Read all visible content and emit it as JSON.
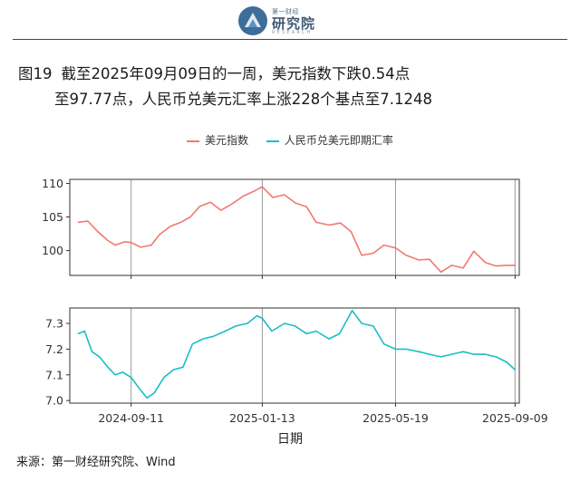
{
  "logo": {
    "top": "第一财经",
    "main": "研究院",
    "sub": "RESEARCH"
  },
  "title": {
    "number": "图19",
    "line1": "截至2025年09月09日的一周，美元指数下跌0.54点",
    "line2": "至97.77点，人民币兑美元汇率上涨228个基点至7.1248"
  },
  "legend": [
    {
      "label": "美元指数",
      "color": "#F07A70"
    },
    {
      "label": "人民币兑美元即期汇率",
      "color": "#18BFC4"
    }
  ],
  "x_axis_title": "日期",
  "source": "来源：第一财经研究院、Wind",
  "chart_data": [
    {
      "type": "line",
      "panel": "top",
      "series_name": "美元指数",
      "color": "#F07A70",
      "ylim": [
        96.3,
        110.6
      ],
      "yticks": [
        100,
        105,
        110
      ],
      "xlim": [
        "2024-07-15",
        "2025-09-13"
      ],
      "vlines": [
        "2024-09-11",
        "2025-01-13",
        "2025-05-19",
        "2025-09-09"
      ],
      "x": [
        "2024-07-23",
        "2024-08-01",
        "2024-08-10",
        "2024-08-20",
        "2024-08-27",
        "2024-09-05",
        "2024-09-11",
        "2024-09-20",
        "2024-09-30",
        "2024-10-08",
        "2024-10-18",
        "2024-10-28",
        "2024-11-06",
        "2024-11-15",
        "2024-11-25",
        "2024-12-05",
        "2024-12-16",
        "2024-12-26",
        "2025-01-06",
        "2025-01-13",
        "2025-01-23",
        "2025-02-03",
        "2025-02-13",
        "2025-02-24",
        "2025-03-05",
        "2025-03-17",
        "2025-03-28",
        "2025-04-07",
        "2025-04-17",
        "2025-04-28",
        "2025-05-08",
        "2025-05-19",
        "2025-05-29",
        "2025-06-10",
        "2025-06-20",
        "2025-07-01",
        "2025-07-11",
        "2025-07-22",
        "2025-08-01",
        "2025-08-12",
        "2025-08-22",
        "2025-09-01",
        "2025-09-09"
      ],
      "values": [
        104.2,
        104.4,
        102.9,
        101.5,
        100.8,
        101.3,
        101.2,
        100.5,
        100.8,
        102.4,
        103.6,
        104.2,
        105.0,
        106.6,
        107.2,
        106.0,
        107.0,
        108.1,
        108.9,
        109.5,
        107.9,
        108.3,
        107.1,
        106.5,
        104.2,
        103.8,
        104.1,
        102.8,
        99.3,
        99.6,
        100.8,
        100.4,
        99.3,
        98.6,
        98.7,
        96.8,
        97.8,
        97.4,
        99.9,
        98.2,
        97.7,
        97.8,
        97.8
      ]
    },
    {
      "type": "line",
      "panel": "bottom",
      "series_name": "人民币兑美元即期汇率",
      "color": "#18BFC4",
      "ylim": [
        6.99,
        7.36
      ],
      "yticks": [
        7.0,
        7.1,
        7.2,
        7.3
      ],
      "xlim": [
        "2024-07-15",
        "2025-09-13"
      ],
      "vlines": [
        "2024-09-11",
        "2025-01-13",
        "2025-05-19",
        "2025-09-09"
      ],
      "x": [
        "2024-07-23",
        "2024-07-29",
        "2024-08-05",
        "2024-08-12",
        "2024-08-20",
        "2024-08-27",
        "2024-09-03",
        "2024-09-11",
        "2024-09-20",
        "2024-09-26",
        "2024-10-03",
        "2024-10-12",
        "2024-10-21",
        "2024-10-30",
        "2024-11-08",
        "2024-11-18",
        "2024-11-28",
        "2024-12-09",
        "2024-12-19",
        "2024-12-30",
        "2025-01-08",
        "2025-01-13",
        "2025-01-22",
        "2025-02-03",
        "2025-02-13",
        "2025-02-24",
        "2025-03-05",
        "2025-03-17",
        "2025-03-27",
        "2025-04-08",
        "2025-04-17",
        "2025-04-28",
        "2025-05-08",
        "2025-05-19",
        "2025-05-29",
        "2025-06-10",
        "2025-06-20",
        "2025-07-01",
        "2025-07-11",
        "2025-07-22",
        "2025-08-01",
        "2025-08-12",
        "2025-08-22",
        "2025-09-01",
        "2025-09-09"
      ],
      "values": [
        7.26,
        7.27,
        7.19,
        7.17,
        7.13,
        7.1,
        7.11,
        7.09,
        7.04,
        7.01,
        7.03,
        7.09,
        7.12,
        7.13,
        7.22,
        7.24,
        7.25,
        7.27,
        7.29,
        7.3,
        7.33,
        7.32,
        7.27,
        7.3,
        7.29,
        7.26,
        7.27,
        7.24,
        7.26,
        7.35,
        7.3,
        7.29,
        7.22,
        7.2,
        7.2,
        7.19,
        7.18,
        7.17,
        7.18,
        7.19,
        7.18,
        7.18,
        7.17,
        7.15,
        7.12
      ]
    }
  ],
  "x_tick_labels": [
    "2024-09-11",
    "2025-01-13",
    "2025-05-19",
    "2025-09-09"
  ]
}
